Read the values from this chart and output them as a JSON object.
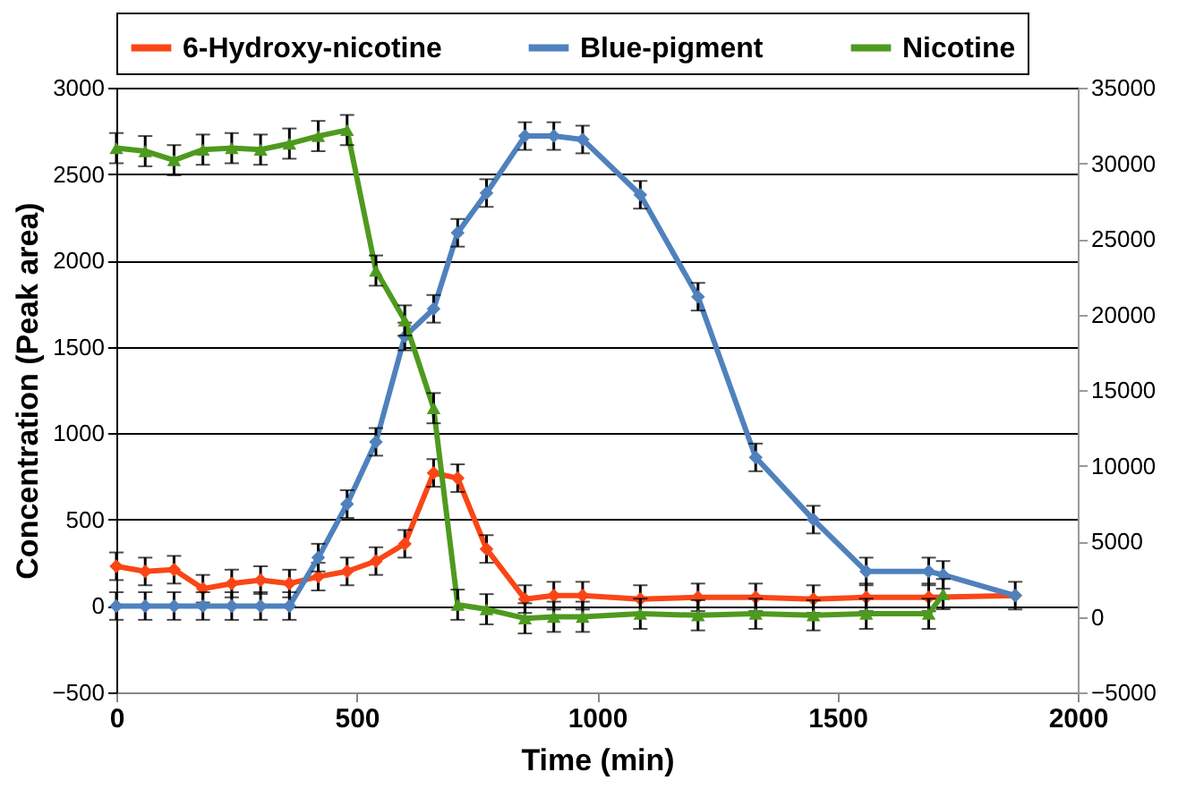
{
  "chart_data": {
    "type": "line",
    "xlabel": "Time (min)",
    "ylabel": "Concentration (Peak area)",
    "xlim": [
      0,
      2000
    ],
    "xticks": [
      0,
      500,
      1000,
      1500,
      2000
    ],
    "ylim": [
      -500,
      3000
    ],
    "yticks": [
      -500,
      0,
      500,
      1000,
      1500,
      2000,
      2500,
      3000
    ],
    "y2lim": [
      -5000,
      35000
    ],
    "y2ticks": [
      -5000,
      0,
      5000,
      10000,
      15000,
      20000,
      25000,
      30000,
      35000
    ],
    "grid": "y",
    "legend": "top",
    "line_style": "solid",
    "series": [
      {
        "name": "6-Hydroxy-nicotine",
        "color": "#fa4616",
        "marker": "diamond",
        "x": [
          0,
          60,
          120,
          180,
          240,
          300,
          360,
          420,
          480,
          540,
          600,
          660,
          710,
          770,
          850,
          910,
          970,
          1090,
          1210,
          1330,
          1450,
          1560,
          1690,
          1870
        ],
        "values": [
          230,
          200,
          210,
          100,
          130,
          150,
          130,
          170,
          200,
          260,
          360,
          770,
          740,
          330,
          40,
          60,
          60,
          40,
          50,
          50,
          40,
          50,
          50,
          60
        ],
        "errors": [
          80,
          80,
          80,
          80,
          80,
          80,
          80,
          80,
          80,
          80,
          80,
          80,
          80,
          80,
          80,
          80,
          80,
          80,
          80,
          80,
          80,
          80,
          80,
          null
        ]
      },
      {
        "name": "Blue-pigment",
        "color": "#4f81bd",
        "marker": "diamond",
        "x": [
          0,
          60,
          120,
          180,
          240,
          300,
          360,
          420,
          480,
          540,
          600,
          660,
          710,
          770,
          850,
          910,
          970,
          1090,
          1210,
          1330,
          1450,
          1560,
          1690,
          1720,
          1870
        ],
        "values": [
          0,
          0,
          0,
          0,
          0,
          0,
          0,
          280,
          590,
          950,
          1560,
          1720,
          2160,
          2390,
          2720,
          2720,
          2700,
          2380,
          1790,
          860,
          500,
          200,
          200,
          180,
          60
        ],
        "errors": [
          80,
          80,
          80,
          80,
          80,
          80,
          80,
          80,
          80,
          80,
          80,
          80,
          80,
          80,
          80,
          80,
          80,
          80,
          80,
          80,
          80,
          80,
          80,
          80,
          80
        ]
      },
      {
        "name": "Nicotine",
        "color": "#4e9a1e",
        "marker": "triangle",
        "axis": "y2",
        "x": [
          0,
          60,
          120,
          180,
          240,
          300,
          360,
          420,
          480,
          540,
          600,
          660,
          710,
          770,
          850,
          910,
          970,
          1090,
          1210,
          1330,
          1450,
          1560,
          1690,
          1720
        ],
        "values": [
          31000,
          30800,
          30200,
          30900,
          31000,
          30900,
          31300,
          31800,
          32200,
          22900,
          19600,
          13800,
          800,
          500,
          -100,
          0,
          0,
          200,
          100,
          200,
          100,
          200,
          200,
          1500
        ],
        "errors": [
          1000,
          1000,
          1000,
          1000,
          1000,
          1000,
          1000,
          1000,
          1000,
          1000,
          1000,
          1000,
          1000,
          1000,
          1000,
          1000,
          1000,
          1000,
          1000,
          1000,
          1000,
          1000,
          1000,
          1000
        ]
      }
    ]
  }
}
